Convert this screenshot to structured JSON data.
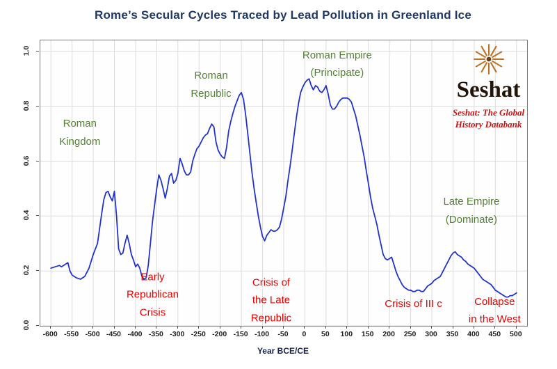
{
  "title": "Rome’s Secular Cycles Traced by Lead Pollution in Greenland Ice",
  "logo": {
    "name": "Seshat",
    "tagline_line1": "Seshat: The Global",
    "tagline_line2": "History Databank"
  },
  "colors": {
    "title": "#1F3864",
    "line": "#2233cc",
    "annotation_green": "#548235",
    "annotation_red": "#e60000",
    "logo_orange": "#bf7225",
    "logo_red": "#cc1111"
  },
  "chart_data": {
    "type": "line",
    "title": "Rome’s Secular Cycles Traced by Lead Pollution in Greenland Ice",
    "xlabel": "Year BCE/CE",
    "ylabel": "",
    "xlim": [
      -625,
      525
    ],
    "ylim": [
      0,
      1.04
    ],
    "grid": true,
    "x_ticks": [
      -600,
      -550,
      -500,
      -450,
      -400,
      -350,
      -300,
      -250,
      -200,
      -150,
      -100,
      -50,
      0,
      50,
      100,
      150,
      200,
      250,
      300,
      350,
      400,
      450,
      500
    ],
    "y_ticks": [
      0,
      0.2,
      0.4,
      0.6,
      0.8,
      1.0
    ],
    "y_tick_labels": [
      "0.0",
      "0.2",
      "0.4",
      "0.6",
      "0.8",
      "1.0"
    ],
    "x": [
      -600,
      -590,
      -580,
      -575,
      -565,
      -560,
      -555,
      -550,
      -545,
      -540,
      -530,
      -520,
      -510,
      -500,
      -490,
      -480,
      -475,
      -470,
      -465,
      -460,
      -455,
      -450,
      -445,
      -440,
      -435,
      -430,
      -425,
      -420,
      -415,
      -410,
      -405,
      -400,
      -395,
      -390,
      -385,
      -380,
      -375,
      -370,
      -365,
      -360,
      -355,
      -350,
      -345,
      -340,
      -335,
      -330,
      -325,
      -320,
      -315,
      -310,
      -305,
      -300,
      -295,
      -290,
      -285,
      -280,
      -275,
      -270,
      -265,
      -260,
      -255,
      -250,
      -245,
      -240,
      -235,
      -230,
      -225,
      -220,
      -215,
      -210,
      -205,
      -200,
      -195,
      -190,
      -185,
      -180,
      -175,
      -170,
      -165,
      -160,
      -155,
      -150,
      -145,
      -140,
      -135,
      -130,
      -125,
      -120,
      -115,
      -110,
      -105,
      -100,
      -95,
      -90,
      -85,
      -80,
      -75,
      -70,
      -65,
      -60,
      -55,
      -50,
      -45,
      -40,
      -35,
      -30,
      -25,
      -20,
      -15,
      -10,
      -5,
      0,
      5,
      10,
      15,
      20,
      25,
      30,
      35,
      40,
      45,
      50,
      55,
      60,
      65,
      70,
      75,
      80,
      85,
      90,
      95,
      100,
      105,
      110,
      115,
      120,
      125,
      130,
      135,
      140,
      145,
      150,
      155,
      160,
      165,
      170,
      175,
      180,
      185,
      190,
      195,
      200,
      205,
      210,
      215,
      220,
      225,
      230,
      235,
      240,
      245,
      250,
      255,
      260,
      265,
      270,
      275,
      280,
      285,
      290,
      295,
      300,
      305,
      310,
      315,
      320,
      325,
      330,
      335,
      340,
      345,
      350,
      355,
      360,
      365,
      370,
      375,
      380,
      385,
      390,
      395,
      400,
      405,
      410,
      415,
      420,
      425,
      430,
      435,
      440,
      445,
      450,
      455,
      460,
      465,
      470,
      475,
      480,
      485,
      490,
      495,
      500
    ],
    "y": [
      0.21,
      0.215,
      0.22,
      0.215,
      0.225,
      0.23,
      0.2,
      0.185,
      0.18,
      0.175,
      0.17,
      0.18,
      0.21,
      0.26,
      0.3,
      0.41,
      0.46,
      0.485,
      0.49,
      0.47,
      0.455,
      0.49,
      0.4,
      0.28,
      0.26,
      0.265,
      0.3,
      0.33,
      0.3,
      0.26,
      0.24,
      0.215,
      0.225,
      0.21,
      0.18,
      0.17,
      0.175,
      0.22,
      0.3,
      0.38,
      0.44,
      0.5,
      0.55,
      0.53,
      0.5,
      0.465,
      0.5,
      0.545,
      0.555,
      0.52,
      0.53,
      0.555,
      0.61,
      0.59,
      0.565,
      0.55,
      0.55,
      0.56,
      0.6,
      0.625,
      0.645,
      0.655,
      0.67,
      0.685,
      0.695,
      0.7,
      0.72,
      0.735,
      0.725,
      0.67,
      0.64,
      0.625,
      0.615,
      0.61,
      0.65,
      0.71,
      0.745,
      0.775,
      0.8,
      0.82,
      0.84,
      0.85,
      0.825,
      0.77,
      0.7,
      0.63,
      0.56,
      0.5,
      0.45,
      0.4,
      0.36,
      0.325,
      0.31,
      0.33,
      0.34,
      0.35,
      0.345,
      0.345,
      0.35,
      0.36,
      0.39,
      0.43,
      0.47,
      0.53,
      0.58,
      0.64,
      0.7,
      0.76,
      0.81,
      0.85,
      0.87,
      0.885,
      0.895,
      0.9,
      0.875,
      0.86,
      0.875,
      0.87,
      0.855,
      0.85,
      0.86,
      0.875,
      0.845,
      0.805,
      0.79,
      0.79,
      0.8,
      0.815,
      0.825,
      0.83,
      0.83,
      0.83,
      0.825,
      0.815,
      0.79,
      0.765,
      0.73,
      0.695,
      0.655,
      0.615,
      0.565,
      0.52,
      0.47,
      0.43,
      0.4,
      0.37,
      0.33,
      0.295,
      0.26,
      0.245,
      0.24,
      0.245,
      0.25,
      0.225,
      0.2,
      0.18,
      0.165,
      0.15,
      0.14,
      0.135,
      0.13,
      0.13,
      0.125,
      0.125,
      0.13,
      0.13,
      0.125,
      0.125,
      0.135,
      0.145,
      0.15,
      0.155,
      0.165,
      0.17,
      0.175,
      0.18,
      0.195,
      0.21,
      0.225,
      0.24,
      0.255,
      0.265,
      0.27,
      0.26,
      0.255,
      0.25,
      0.24,
      0.235,
      0.225,
      0.22,
      0.215,
      0.21,
      0.2,
      0.19,
      0.18,
      0.17,
      0.165,
      0.16,
      0.155,
      0.15,
      0.14,
      0.13,
      0.125,
      0.12,
      0.115,
      0.11,
      0.105,
      0.105,
      0.11,
      0.11,
      0.115,
      0.12
    ],
    "annotations": [
      {
        "id": "roman-kingdom",
        "lines": [
          "Roman",
          "Kingdom"
        ],
        "color": "green",
        "x": -530,
        "y": 0.7
      },
      {
        "id": "roman-republic",
        "lines": [
          "Roman",
          "Republic"
        ],
        "color": "green",
        "x": -220,
        "y": 0.875
      },
      {
        "id": "roman-empire-principate",
        "lines": [
          "Roman Empire",
          "(Principate)"
        ],
        "color": "green",
        "x": 78,
        "y": 0.95
      },
      {
        "id": "late-empire-dominate",
        "lines": [
          "Late Empire",
          "(Dominate)"
        ],
        "color": "green",
        "x": 395,
        "y": 0.415
      },
      {
        "id": "early-republican-crisis",
        "lines": [
          "Early",
          "Republican",
          "Crisis"
        ],
        "color": "red",
        "x": -358,
        "y": 0.11
      },
      {
        "id": "crisis-of-the-late-republic",
        "lines": [
          "Crisis of",
          "the Late",
          "Republic"
        ],
        "color": "red",
        "x": -78,
        "y": 0.09
      },
      {
        "id": "crisis-of-iii-c",
        "lines": [
          "Crisis of III c"
        ],
        "color": "red",
        "x": 258,
        "y": 0.075
      },
      {
        "id": "collapse-in-the-west",
        "lines": [
          "Collapse",
          "in the West"
        ],
        "color": "red",
        "x": 450,
        "y": 0.052
      }
    ]
  }
}
